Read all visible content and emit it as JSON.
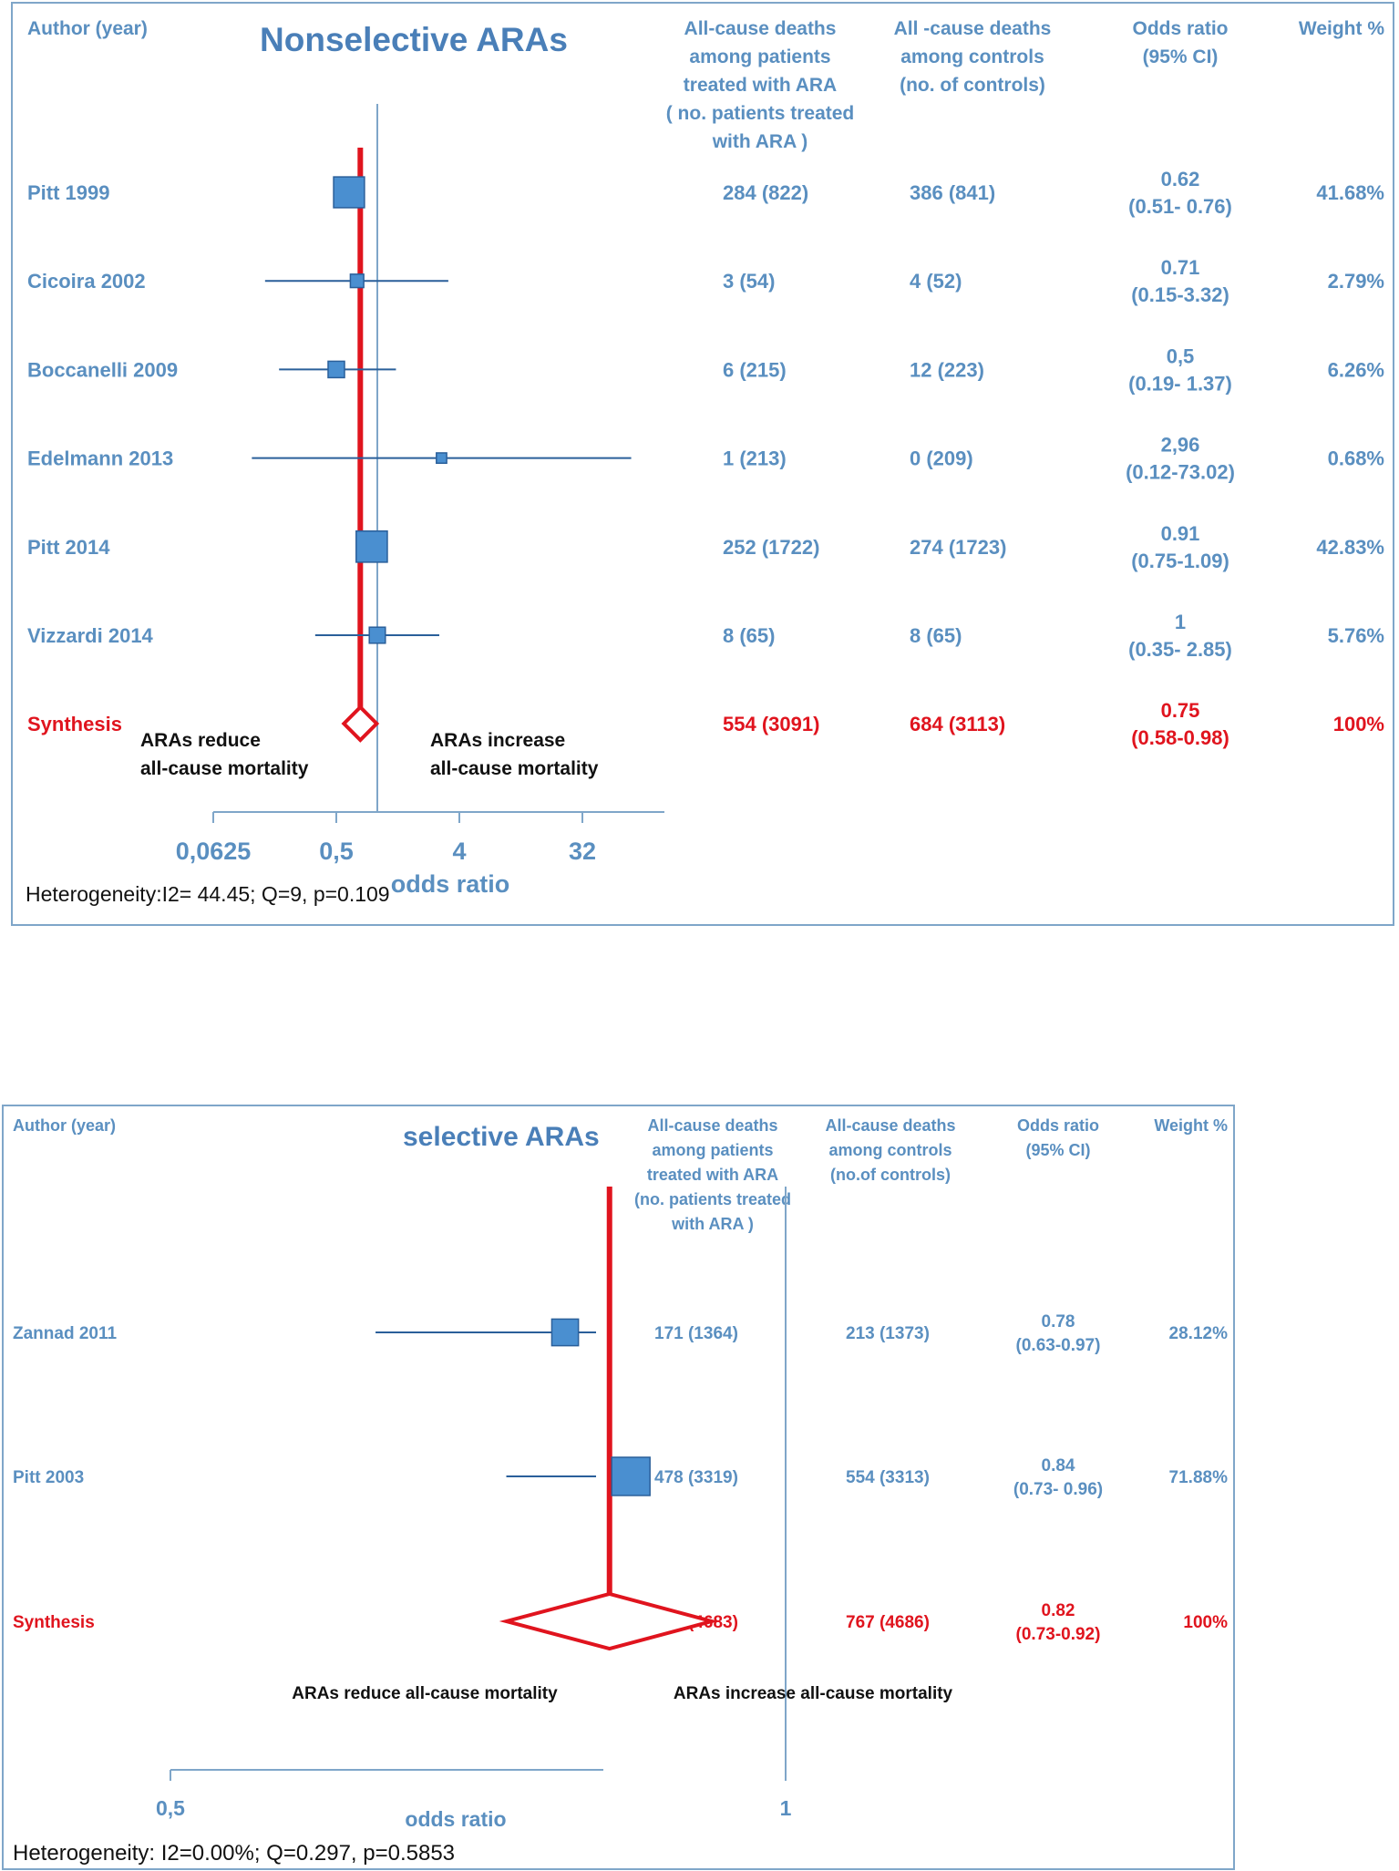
{
  "chart_data": [
    {
      "type": "forest",
      "title": "Nonselective ARAs",
      "headers": {
        "author": "Author (year)",
        "treated": [
          "All-cause deaths",
          "among patients",
          "treated with ARA",
          "( no. patients treated",
          "with ARA )"
        ],
        "controls": [
          "All -cause deaths",
          "among controls",
          "(no. of controls)"
        ],
        "or": [
          "Odds  ratio",
          "(95%  CI)"
        ],
        "weight": "Weight %"
      },
      "studies": [
        {
          "author": "Pitt 1999",
          "treated": "284 (822)",
          "controls": "386 (841)",
          "or_text": "0.62",
          "ci_text": "(0.51- 0.76)",
          "weight": "41.68%",
          "or": 0.62,
          "lo": 0.51,
          "hi": 0.76,
          "w": 41.68
        },
        {
          "author": "Cicoira 2002",
          "treated": "3 (54)",
          "controls": "4 (52)",
          "or_text": "0.71",
          "ci_text": "(0.15-3.32)",
          "weight": "2.79%",
          "or": 0.71,
          "lo": 0.15,
          "hi": 3.32,
          "w": 2.79
        },
        {
          "author": "Boccanelli 2009",
          "treated": "6 (215)",
          "controls": "12 (223)",
          "or_text": "0,5",
          "ci_text": "(0.19- 1.37)",
          "weight": "6.26%",
          "or": 0.5,
          "lo": 0.19,
          "hi": 1.37,
          "w": 6.26
        },
        {
          "author": "Edelmann 2013",
          "treated": "1 (213)",
          "controls": "0 (209)",
          "or_text": "2,96",
          "ci_text": "(0.12-73.02)",
          "weight": "0.68%",
          "or": 2.96,
          "lo": 0.12,
          "hi": 73.02,
          "w": 0.68
        },
        {
          "author": "Pitt 2014",
          "treated": "252 (1722)",
          "controls": "274 (1723)",
          "or_text": "0.91",
          "ci_text": "(0.75-1.09)",
          "weight": "42.83%",
          "or": 0.91,
          "lo": 0.75,
          "hi": 1.09,
          "w": 42.83
        },
        {
          "author": "Vizzardi 2014",
          "treated": "8 (65)",
          "controls": "8 (65)",
          "or_text": "1",
          "ci_text": "(0.35- 2.85)",
          "weight": "5.76%",
          "or": 1.0,
          "lo": 0.35,
          "hi": 2.85,
          "w": 5.76
        }
      ],
      "synthesis": {
        "author": "Synthesis",
        "treated": "554 (3091)",
        "controls": "684 (3113)",
        "or_text": "0.75",
        "ci_text": "(0.58-0.98)",
        "weight": "100%",
        "or": 0.75,
        "lo": 0.58,
        "hi": 0.98
      },
      "annotations": {
        "reduce": [
          "ARAs reduce",
          "all-cause mortality"
        ],
        "increase": [
          "ARAs  increase",
          "all-cause mortality"
        ]
      },
      "x_ticks": [
        {
          "label": "0,0625",
          "value": 0.0625
        },
        {
          "label": "0,5",
          "value": 0.5
        },
        {
          "label": "4",
          "value": 4
        },
        {
          "label": "32",
          "value": 32
        }
      ],
      "xlabel": "odds ratio",
      "x_scale": "log2",
      "xlim": [
        0.0625,
        64
      ],
      "footnote": "Heterogeneity:I2= 44.45; Q=9, p=0.109"
    },
    {
      "type": "forest",
      "title": "selective ARAs",
      "headers": {
        "author": "Author (year)",
        "treated": [
          "All-cause deaths",
          "among patients",
          "treated with ARA",
          "(no. patients treated",
          "with ARA )"
        ],
        "controls": [
          "All-cause deaths",
          "among controls",
          "(no.of controls)"
        ],
        "or": [
          "Odds ratio",
          "(95% CI)"
        ],
        "weight": "Weight %"
      },
      "studies": [
        {
          "author": "Zannad 2011",
          "treated": "171 (1364)",
          "controls": "213 (1373)",
          "or_text": "0.78",
          "ci_text": "(0.63-0.97)",
          "weight": "28.12%",
          "or": 0.78,
          "lo": 0.63,
          "hi": 0.97,
          "w": 28.12
        },
        {
          "author": "Pitt 2003",
          "treated": "478 (3319)",
          "controls": "554 (3313)",
          "or_text": "0.84",
          "ci_text": "(0.73- 0.96)",
          "weight": "71.88%",
          "or": 0.84,
          "lo": 0.73,
          "hi": 0.96,
          "w": 71.88
        }
      ],
      "synthesis": {
        "author": "Synthesis",
        "treated": "649 (4683)",
        "controls": "767 (4686)",
        "or_text": "0.82",
        "ci_text": "(0.73-0.92)",
        "weight": "100%",
        "or": 0.82,
        "lo": 0.73,
        "hi": 0.92
      },
      "annotations": {
        "reduce": [
          "ARAs  reduce  all-cause mortality"
        ],
        "increase": [
          "ARAs increase all-cause mortality"
        ]
      },
      "x_ticks": [
        {
          "label": "0,5",
          "value": 0.5
        },
        {
          "label": "1",
          "value": 1
        }
      ],
      "xlabel": "odds ratio",
      "x_scale": "log2",
      "xlim": [
        0.5,
        1
      ],
      "footnote": "Heterogeneity: I2=0.00%; Q=0.297, p=0.5853"
    }
  ],
  "colors": {
    "marker_fill": "#4a8fd0",
    "marker_stroke": "#2a5f9a",
    "ci_line": "#2a5f9a",
    "synthesis_line": "#e0141e",
    "header_text": "#5a8fc0",
    "axis": "#7fa6c9"
  }
}
